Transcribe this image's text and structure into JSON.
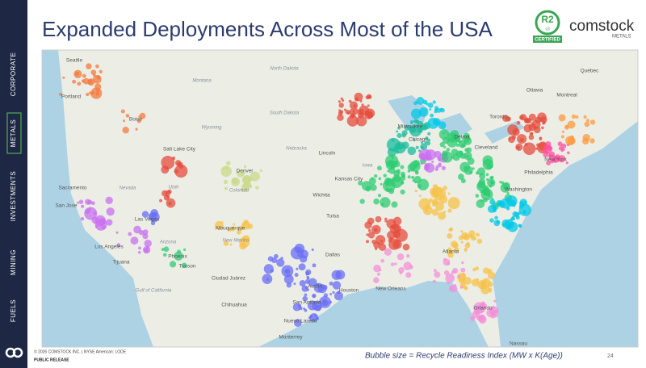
{
  "sidebar": {
    "items": [
      "CORPORATE",
      "METALS",
      "INVESTMENTS",
      "MINING",
      "FUELS"
    ]
  },
  "header": {
    "title": "Expanded Deployments Across Most of the USA"
  },
  "logo": {
    "badge": "R2",
    "badge_sub": "v3",
    "certified": "CERTIFIED",
    "name": "comstock",
    "sub": "METALS"
  },
  "map": {
    "cities": [
      "Seattle",
      "Portland",
      "Boise",
      "Salt Lake City",
      "Sacramento",
      "San Jose",
      "Las Vegas",
      "Los Angeles",
      "Tijuana",
      "Phoenix",
      "Tucson",
      "Albuquerque",
      "Denver",
      "Lincoln",
      "Kansas City",
      "Wichita",
      "Tulsa",
      "Dallas",
      "Austin",
      "Houston",
      "San Antonio",
      "Ciudad Juárez",
      "Chihuahua",
      "Nuevo Laredo",
      "Monterrey",
      "Chicago",
      "Milwaukee",
      "Detroit",
      "Cleveland",
      "Toronto",
      "Ottawa",
      "Montreal",
      "Québec",
      "New York",
      "Philadelphia",
      "Washington",
      "Atlanta",
      "New Orleans",
      "Orlando",
      "Nassau"
    ],
    "regions": [
      "Montana",
      "North Dakota",
      "South Dakota",
      "Wyoming",
      "Nebraska",
      "Nevada",
      "Utah",
      "Colorado",
      "Arizona",
      "New Mexico",
      "Iowa",
      "Gulf of California"
    ]
  },
  "footer": {
    "copyright": "© 2026 COMSTOCK INC. | NYSE American: LODE",
    "release": "PUBLIC RELEASE",
    "caption": "Bubble size = Recycle Readiness Index (MW x K(Age))",
    "page": "24"
  }
}
